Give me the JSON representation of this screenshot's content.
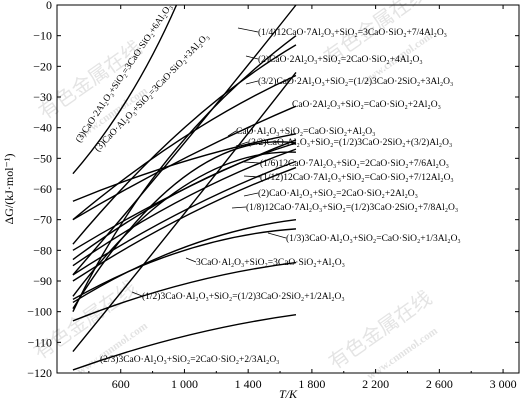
{
  "chart_data": {
    "type": "line",
    "xlabel": "T/K",
    "ylabel": "ΔG/(kJ·mol⁻¹)",
    "xlim": [
      200,
      3100
    ],
    "ylim": [
      -120,
      0
    ],
    "xticks": [
      600,
      1000,
      1400,
      1800,
      2200,
      2600,
      3000
    ],
    "xtick_labels": [
      "600",
      "1 000",
      "1 400",
      "1 800",
      "2 200",
      "2 600",
      "3 000"
    ],
    "yticks": [
      0,
      -10,
      -20,
      -30,
      -40,
      -50,
      -60,
      -70,
      -80,
      -90,
      -100,
      -110,
      -120
    ],
    "grid": false,
    "legend": "none",
    "series": [
      {
        "name": "(1/4)12CaO·7Al₂O₃+SiO₂=3CaO·SiO₂+7/4Al₂O₃",
        "x": [
          300,
          1000,
          1700
        ],
        "y": [
          -88,
          -45,
          0
        ]
      },
      {
        "name": "(2)CaO·2Al₂O₃+SiO₂=2CaO·SiO₂+4Al₂O₃",
        "x": [
          300,
          1000,
          1700
        ],
        "y": [
          -78,
          -40,
          -13
        ]
      },
      {
        "name": "(3/2)CaO·2Al₂O₃+SiO₂=(1/2)3CaO·2SiO₂+3Al₂O₃",
        "x": [
          300,
          1000,
          1700
        ],
        "y": [
          -70,
          -43,
          -23
        ]
      },
      {
        "name": "CaO·2Al₂O₃+SiO₂=CaO·SiO₂+2Al₂O₃",
        "x": [
          300,
          1000,
          1700
        ],
        "y": [
          -70,
          -50,
          -33
        ]
      },
      {
        "name": "CaO·Al₂O₃+SiO₂=CaO·SiO₂+Al₂O₃",
        "x": [
          300,
          1000,
          1700
        ],
        "y": [
          -64,
          -51,
          -42
        ]
      },
      {
        "name": "(3/2)CaO·Al₂O₃+SiO₂=(1/2)3CaO·2SiO₂+(3/2)Al₂O₃",
        "x": [
          300,
          1000,
          1700
        ],
        "y": [
          -83,
          -60,
          -45
        ]
      },
      {
        "name": "(1/6)12CaO·7Al₂O₃+SiO₂=2CaO·SiO₂+7/6Al₂O₃",
        "x": [
          300,
          1000,
          1700
        ],
        "y": [
          -85,
          -63,
          -47
        ]
      },
      {
        "name": "(1/12)12CaO·7Al₂O₃+SiO₂=CaO·SiO₂+7/12Al₂O₃",
        "x": [
          300,
          1000,
          1700
        ],
        "y": [
          -80,
          -60,
          -44
        ]
      },
      {
        "name": "(2)CaO·Al₂O₃+SiO₂=2CaO·SiO₂+2Al₂O₃",
        "x": [
          300,
          1000,
          1700
        ],
        "y": [
          -88,
          -67,
          -51
        ]
      },
      {
        "name": "(1/8)12CaO·7Al₂O₃+SiO₂=(1/2)3CaO·2SiO₂+7/8Al₂O₃",
        "x": [
          300,
          1000,
          1700
        ],
        "y": [
          -90,
          -69,
          -53
        ]
      },
      {
        "name": "(1/3)3CaO·Al₂O₃+SiO₂=CaO·SiO₂+1/3Al₂O₃",
        "x": [
          300,
          1000,
          1700
        ],
        "y": [
          -97,
          -79,
          -70
        ]
      },
      {
        "name": "3CaO·Al₂O₃+SiO₂=3CaO·SiO₂+Al₂O₃",
        "x": [
          300,
          1000,
          1700
        ],
        "y": [
          -96,
          -80,
          -73
        ]
      },
      {
        "name": "(1/2)3CaO·Al₂O₃+SiO₂=(1/2)3CaO·2SiO₂+1/2Al₂O₃",
        "x": [
          300,
          1000,
          1700
        ],
        "y": [
          -103,
          -91,
          -84
        ]
      },
      {
        "name": "(2/3)3CaO·Al₂O₃+SiO₂=2CaO·SiO₂+2/3Al₂O₃",
        "x": [
          300,
          1000,
          1700
        ],
        "y": [
          -119,
          -108,
          -101
        ]
      },
      {
        "name": "(3)CaO·2Al₂O₃+SiO₂=3CaO·SiO₂+6Al₂O₃",
        "x": [
          300,
          650,
          950
        ],
        "y": [
          -55,
          -30,
          0
        ]
      },
      {
        "name": "(3)CaO·Al₂O₃+SiO₂=3CaO·SiO₂+3Al₂O₃",
        "x": [
          300,
          900,
          1700
        ],
        "y": [
          -100,
          -50,
          -10
        ]
      },
      {
        "name": "",
        "x": [
          300,
          1000,
          1700
        ],
        "y": [
          -113,
          -68,
          -22
        ]
      },
      {
        "name": "",
        "x": [
          300,
          1000,
          1700
        ],
        "y": [
          -99,
          -56,
          -45
        ]
      },
      {
        "name": "",
        "x": [
          300,
          1000,
          1700
        ],
        "y": [
          -95,
          -59,
          -48
        ]
      }
    ],
    "labels": [
      "(1/4)12CaO·7Al₂O₃+SiO₂=3CaO·SiO₂+7/4Al₂O₃",
      "(2)CaO·2Al₂O₃+SiO₂=2CaO·SiO₂+4Al₂O₃",
      "(3/2)CaO·2Al₂O₃+SiO₂=(1/2)3CaO·2SiO₂+3Al₂O₃",
      "CaO·2Al₂O₃+SiO₂=CaO·SiO₂+2Al₂O₃",
      "CaO·Al₂O₃+SiO₂=CaO·SiO₂+Al₂O₃",
      "(3/2)CaO·Al₂O₃+SiO₂=(1/2)3CaO·2SiO₂+(3/2)Al₂O₃",
      "(1/6)12CaO·7Al₂O₃+SiO₂=2CaO·SiO₂+7/6Al₂O₃",
      "(1/12)12CaO·7Al₂O₃+SiO₂=CaO·SiO₂+7/12Al₂O₃",
      "(2)CaO·Al₂O₃+SiO₂=2CaO·SiO₂+2Al₂O₃",
      "(1/8)12CaO·7Al₂O₃+SiO₂=(1/2)3CaO·2SiO₂+7/8Al₂O₃",
      "(1/3)3CaO·Al₂O₃+SiO₂=CaO·SiO₂+1/3Al₂O₃",
      "3CaO·Al₂O₃+SiO₂=3CaO·SiO₂+Al₂O₃",
      "(1/2)3CaO·Al₂O₃+SiO₂=(1/2)3CaO·2SiO₂+1/2Al₂O₃",
      "(2/3)3CaO·Al₂O₃+SiO₂=2CaO·SiO₂+2/3Al₂O₃",
      "(3)CaO·2Al₂O₃+SiO₂=3CaO·SiO₂+6Al₂O₃",
      "(3)CaO·Al₂O₃+SiO₂=3CaO·SiO₂+3Al₂O₃"
    ]
  },
  "watermarks": [
    "有色金属在线",
    "www.cnnmol.com",
    "有色金属在线",
    "www.cnnmol.com",
    "有色金属在线",
    "www.cnnmol.com",
    "有色金属在线",
    "www.cnnmol.com"
  ],
  "colors": {
    "line": "#000000",
    "background": "#ffffff",
    "watermark": "#cfcfcf"
  }
}
